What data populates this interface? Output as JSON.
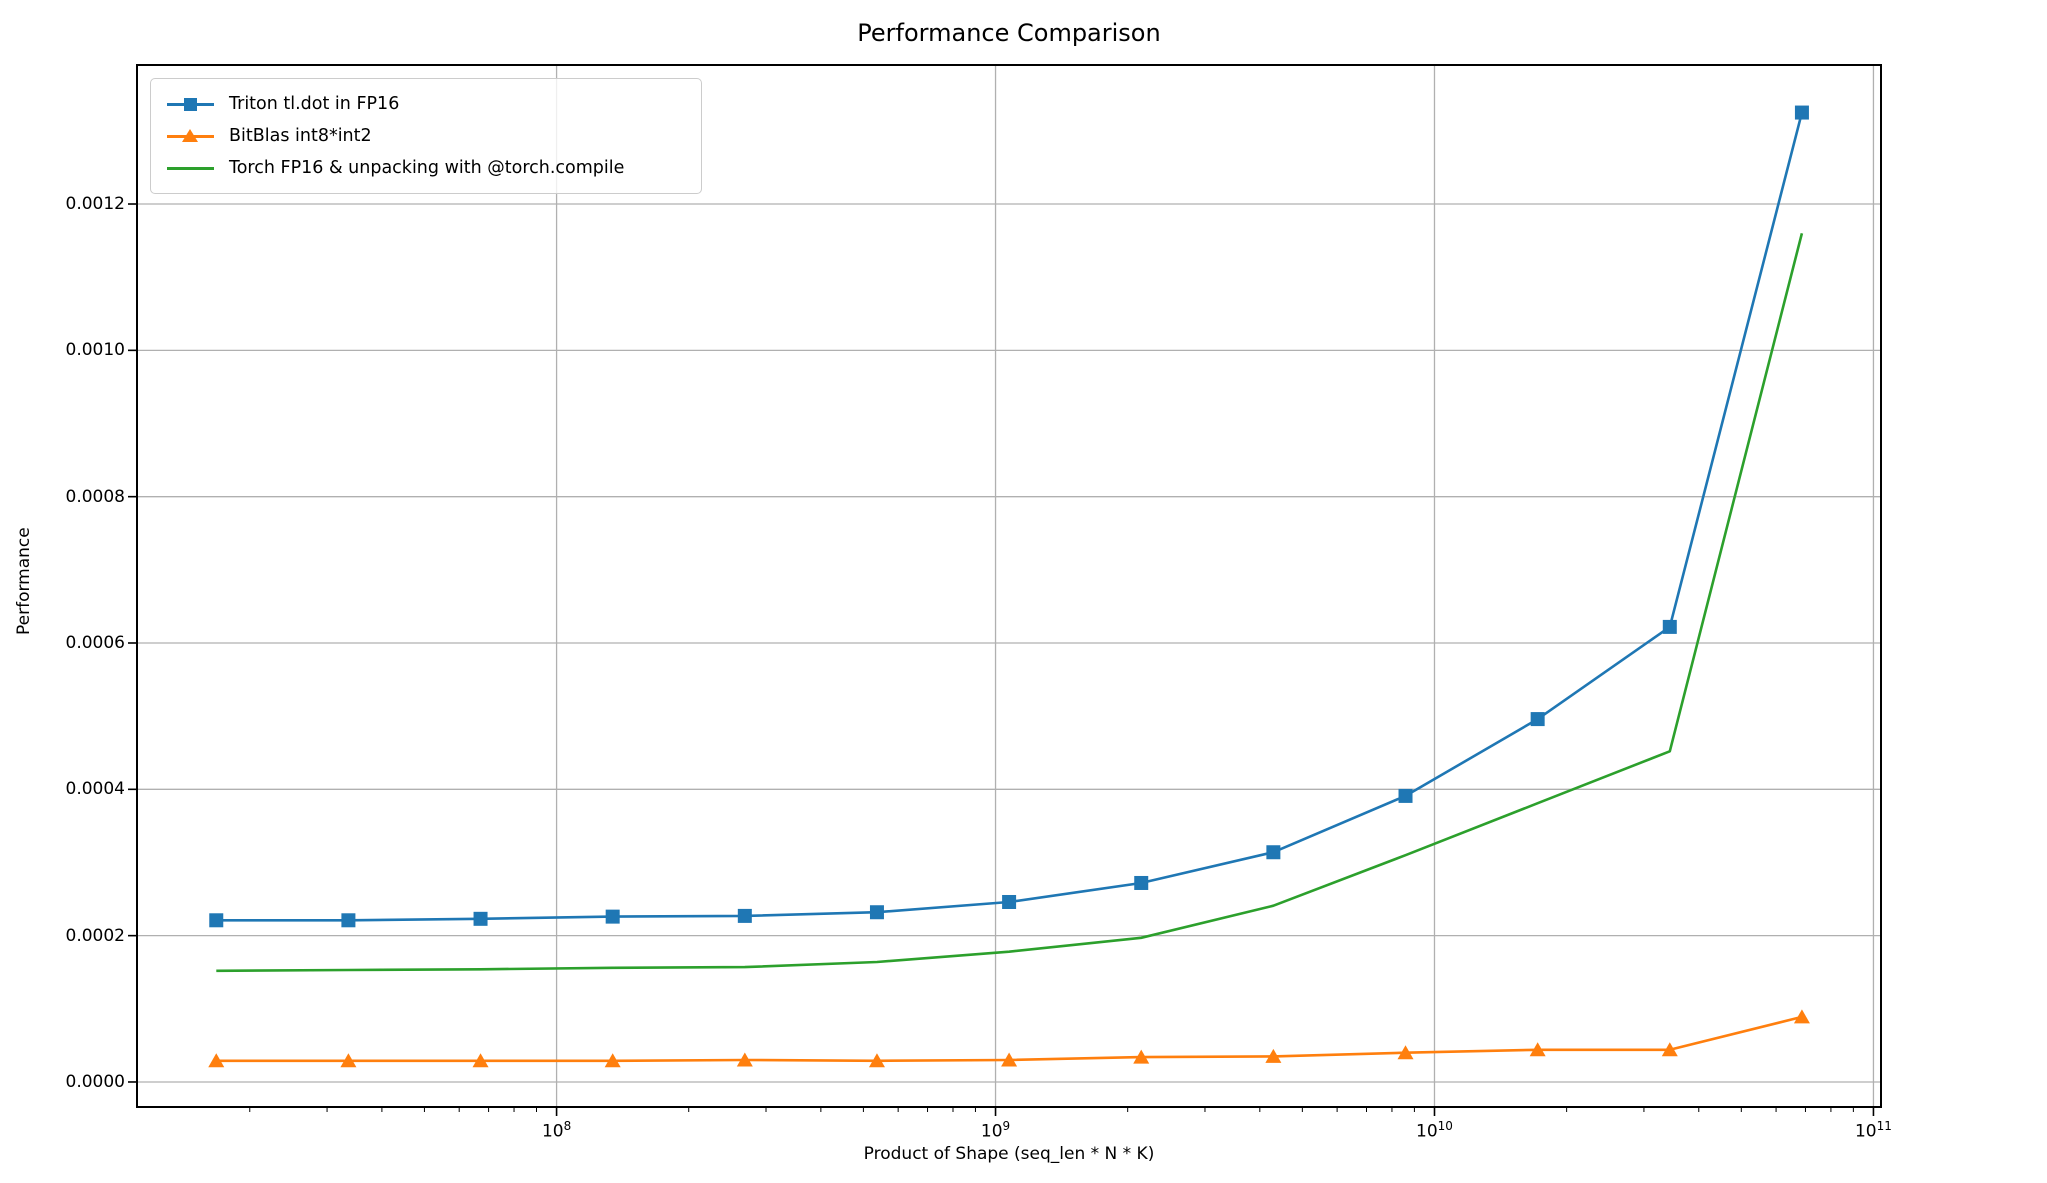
{
  "chart_data": {
    "type": "line",
    "title": "Performance Comparison",
    "xlabel": "Product of Shape (seq_len * N * K)",
    "ylabel": "Performance",
    "x_scale": "log",
    "grid": true,
    "legend_position": "upper left",
    "xlim": [
      11070000,
      104040000000
    ],
    "ylim": [
      -3.42e-05,
      0.00139
    ],
    "x": [
      16777216,
      33554432,
      67108864,
      134217728,
      268435456,
      536870912,
      1073741824,
      2147483648,
      4294967296,
      8589934592,
      17179869184,
      34359738368,
      68719476736
    ],
    "series": [
      {
        "name": "Triton tl.dot in FP16",
        "color": "#1f77b4",
        "marker": "square",
        "values": [
          0.000221,
          0.000221,
          0.000223,
          0.000226,
          0.000227,
          0.000232,
          0.000246,
          0.000272,
          0.000314,
          0.000391,
          0.000496,
          0.000622,
          0.001325
        ]
      },
      {
        "name": "BitBlas int8*int2",
        "color": "#ff7f0e",
        "marker": "triangle",
        "values": [
          2.9e-05,
          2.9e-05,
          2.9e-05,
          2.9e-05,
          3e-05,
          2.9e-05,
          3e-05,
          3.4e-05,
          3.5e-05,
          4e-05,
          4.4e-05,
          4.4e-05,
          8.9e-05
        ]
      },
      {
        "name": "Torch FP16 & unpacking with @torch.compile",
        "color": "#2ca02c",
        "marker": "none",
        "values": [
          0.000152,
          0.000153,
          0.000154,
          0.000156,
          0.000157,
          0.000164,
          0.000178,
          0.000197,
          0.000241,
          0.00031,
          0.000381,
          0.000452,
          0.00116
        ]
      }
    ],
    "x_ticks": [
      {
        "base": "10",
        "exp": "8",
        "value": 100000000
      },
      {
        "base": "10",
        "exp": "9",
        "value": 1000000000
      },
      {
        "base": "10",
        "exp": "10",
        "value": 10000000000
      },
      {
        "base": "10",
        "exp": "11",
        "value": 100000000000
      }
    ],
    "y_ticks": [
      {
        "label": "0.0000",
        "value": 0.0
      },
      {
        "label": "0.0002",
        "value": 0.0002
      },
      {
        "label": "0.0004",
        "value": 0.0004
      },
      {
        "label": "0.0006",
        "value": 0.0006
      },
      {
        "label": "0.0008",
        "value": 0.0008
      },
      {
        "label": "0.0010",
        "value": 0.001
      },
      {
        "label": "0.0012",
        "value": 0.0012
      }
    ],
    "colors": {
      "grid": "#b0b0b0",
      "spine": "#000000",
      "tick": "#000000",
      "legend_border": "#cccccc"
    }
  }
}
